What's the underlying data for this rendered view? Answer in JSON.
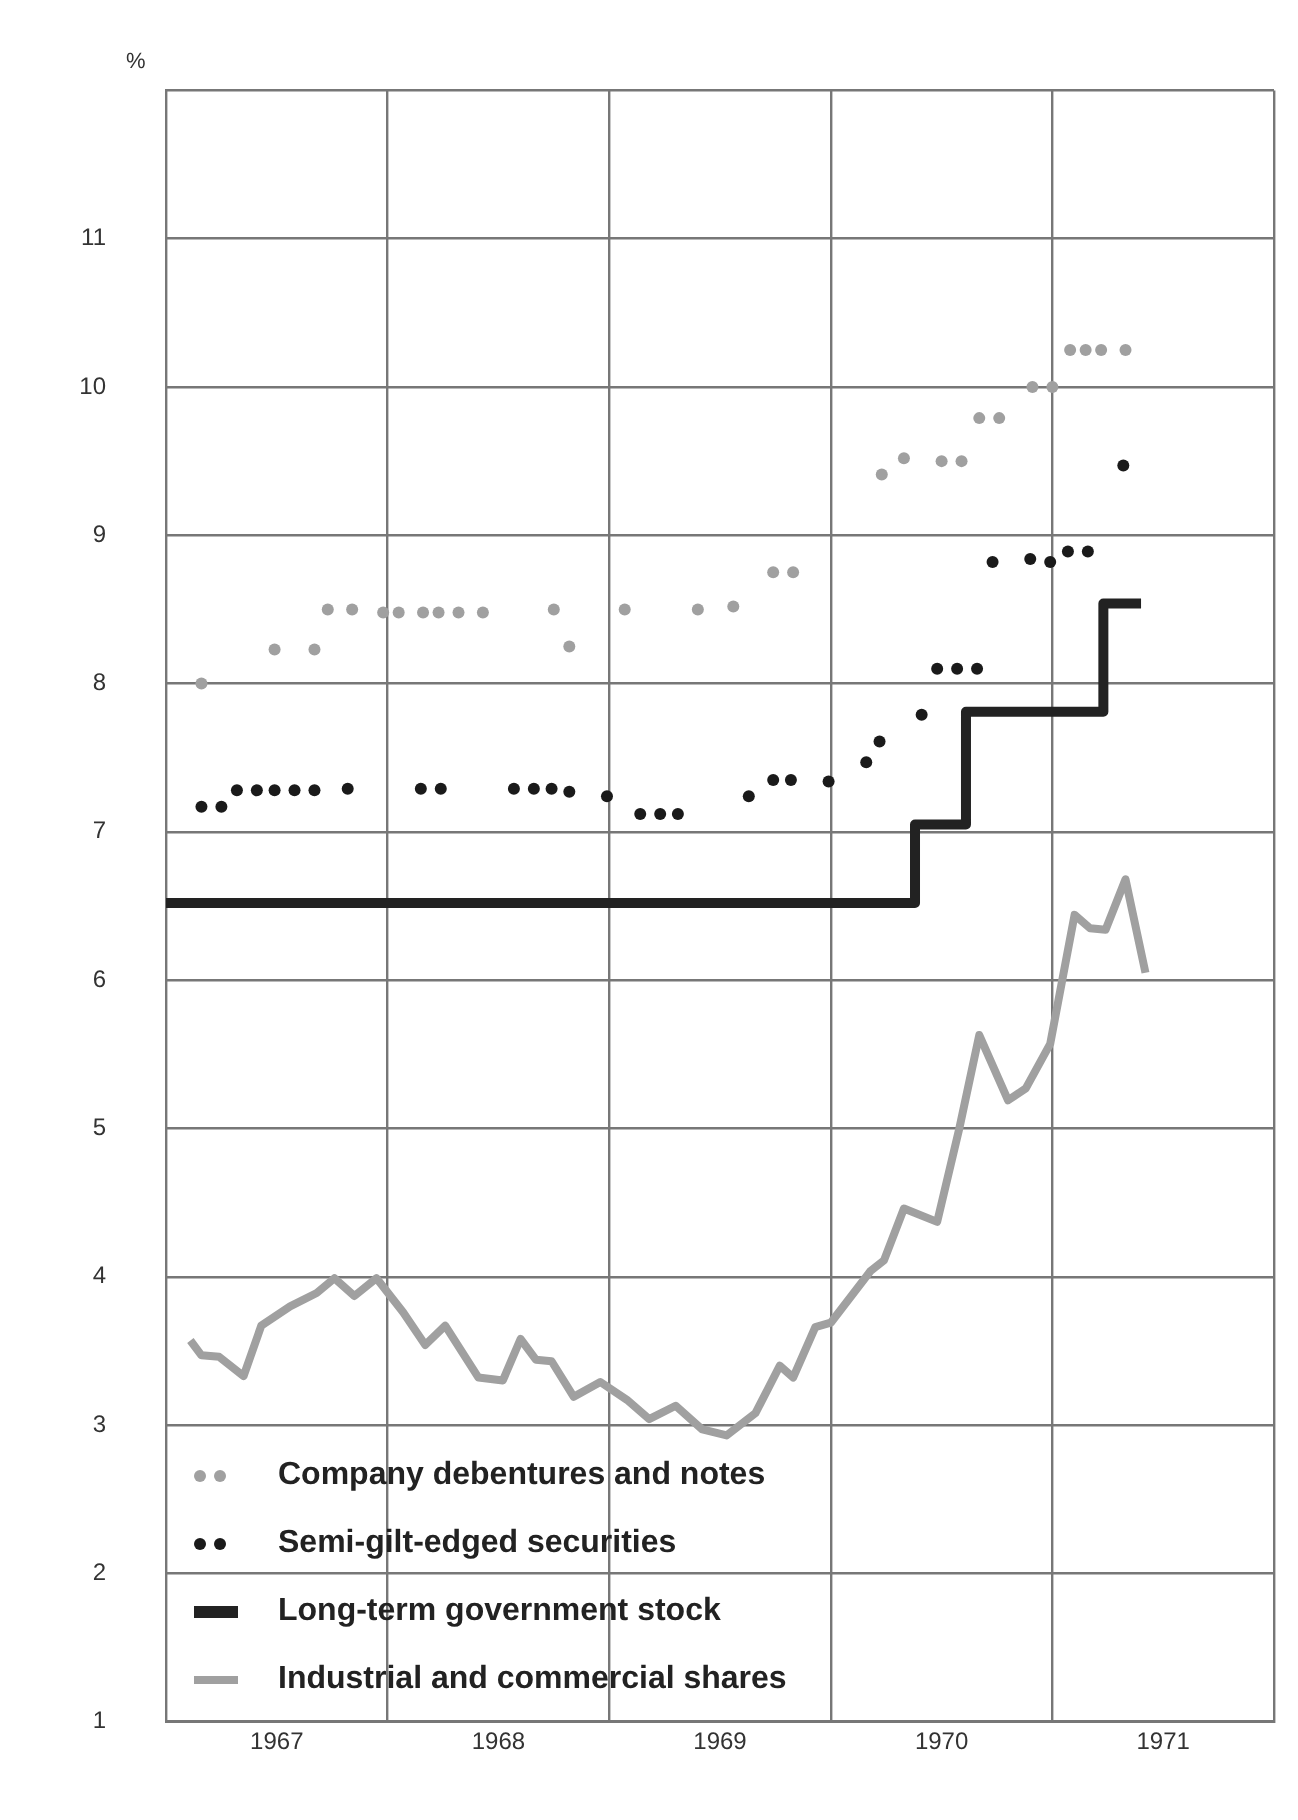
{
  "chart_data": {
    "type": "line",
    "ylabel": "%",
    "xlim": [
      1967,
      1972
    ],
    "ylim": [
      1,
      12
    ],
    "xticks": [
      {
        "value": 1967,
        "label": null
      },
      {
        "value": 1967.5,
        "label": "1967"
      },
      {
        "value": 1968,
        "label": null
      },
      {
        "value": 1968.5,
        "label": "1968"
      },
      {
        "value": 1969,
        "label": null
      },
      {
        "value": 1969.5,
        "label": "1969"
      },
      {
        "value": 1970,
        "label": null
      },
      {
        "value": 1970.5,
        "label": "1970"
      },
      {
        "value": 1971,
        "label": null
      },
      {
        "value": 1971.5,
        "label": "1971"
      },
      {
        "value": 1972,
        "label": null
      }
    ],
    "yticks": [
      1,
      2,
      3,
      4,
      5,
      6,
      7,
      8,
      9,
      10,
      11,
      {
        "value": 12,
        "label": null
      }
    ],
    "grid": true,
    "legend": "bottom left",
    "series": [
      {
        "name": "Company debentures and notes",
        "type": "scatter",
        "marker": "circle",
        "color": "#a0a0a0",
        "x": [
          1967.16,
          1967.49,
          1967.67,
          1967.73,
          1967.84,
          1967.98,
          1968.05,
          1968.16,
          1968.23,
          1968.32,
          1968.43,
          1968.75,
          1968.82,
          1969.07,
          1969.4,
          1969.56,
          1969.74,
          1969.83,
          1970.23,
          1970.33,
          1970.5,
          1970.59,
          1970.67,
          1970.76,
          1970.91,
          1971.0,
          1971.08,
          1971.15,
          1971.22,
          1971.33
        ],
        "values": [
          8.0,
          8.23,
          8.23,
          8.5,
          8.5,
          8.48,
          8.48,
          8.48,
          8.48,
          8.48,
          8.48,
          8.5,
          8.25,
          8.5,
          8.5,
          8.52,
          8.75,
          8.75,
          9.41,
          9.52,
          9.5,
          9.5,
          9.79,
          9.79,
          10.0,
          10.0,
          10.25,
          10.25,
          10.25,
          10.25
        ]
      },
      {
        "name": "Semi-gilt-edged securities",
        "type": "scatter",
        "marker": "circle",
        "color": "#1a1a1a",
        "x": [
          1967.16,
          1967.25,
          1967.32,
          1967.41,
          1967.49,
          1967.58,
          1967.67,
          1967.82,
          1968.15,
          1968.24,
          1968.57,
          1968.66,
          1968.74,
          1968.82,
          1968.99,
          1969.14,
          1969.23,
          1969.31,
          1969.63,
          1969.74,
          1969.82,
          1969.99,
          1970.16,
          1970.22,
          1970.41,
          1970.48,
          1970.57,
          1970.66,
          1970.73,
          1970.9,
          1970.99,
          1971.07,
          1971.16,
          1971.32
        ],
        "values": [
          7.17,
          7.17,
          7.28,
          7.28,
          7.28,
          7.28,
          7.28,
          7.29,
          7.29,
          7.29,
          7.29,
          7.29,
          7.29,
          7.27,
          7.24,
          7.12,
          7.12,
          7.12,
          7.24,
          7.35,
          7.35,
          7.34,
          7.47,
          7.61,
          7.79,
          8.1,
          8.1,
          8.1,
          8.82,
          8.84,
          8.82,
          8.89,
          8.89,
          9.47
        ]
      },
      {
        "name": "Long-term government stock",
        "type": "step",
        "color": "#222222",
        "x": [
          1967,
          1970.38,
          1970.61,
          1971.23,
          1971.4
        ],
        "values": [
          6.52,
          7.05,
          7.81,
          8.54,
          8.54
        ]
      },
      {
        "name": "Industrial and commercial shares",
        "type": "line",
        "color": "#a0a0a0",
        "x": [
          1967.11,
          1967.16,
          1967.24,
          1967.35,
          1967.43,
          1967.56,
          1967.68,
          1967.76,
          1967.85,
          1967.95,
          1968.07,
          1968.17,
          1968.26,
          1968.41,
          1968.52,
          1968.6,
          1968.67,
          1968.74,
          1968.84,
          1968.96,
          1969.08,
          1969.18,
          1969.3,
          1969.42,
          1969.53,
          1969.66,
          1969.77,
          1969.83,
          1969.93,
          1970.0,
          1970.18,
          1970.24,
          1970.33,
          1970.48,
          1970.58,
          1970.67,
          1970.8,
          1970.88,
          1970.99,
          1971.1,
          1971.17,
          1971.24,
          1971.33,
          1971.42
        ],
        "values": [
          3.57,
          3.47,
          3.46,
          3.33,
          3.67,
          3.8,
          3.89,
          3.99,
          3.87,
          3.99,
          3.76,
          3.54,
          3.67,
          3.32,
          3.3,
          3.58,
          3.44,
          3.43,
          3.19,
          3.29,
          3.17,
          3.04,
          3.13,
          2.97,
          2.93,
          3.08,
          3.4,
          3.32,
          3.66,
          3.69,
          4.04,
          4.11,
          4.46,
          4.37,
          5.0,
          5.63,
          5.19,
          5.27,
          5.57,
          6.44,
          6.35,
          6.34,
          6.68,
          6.05
        ]
      }
    ]
  }
}
